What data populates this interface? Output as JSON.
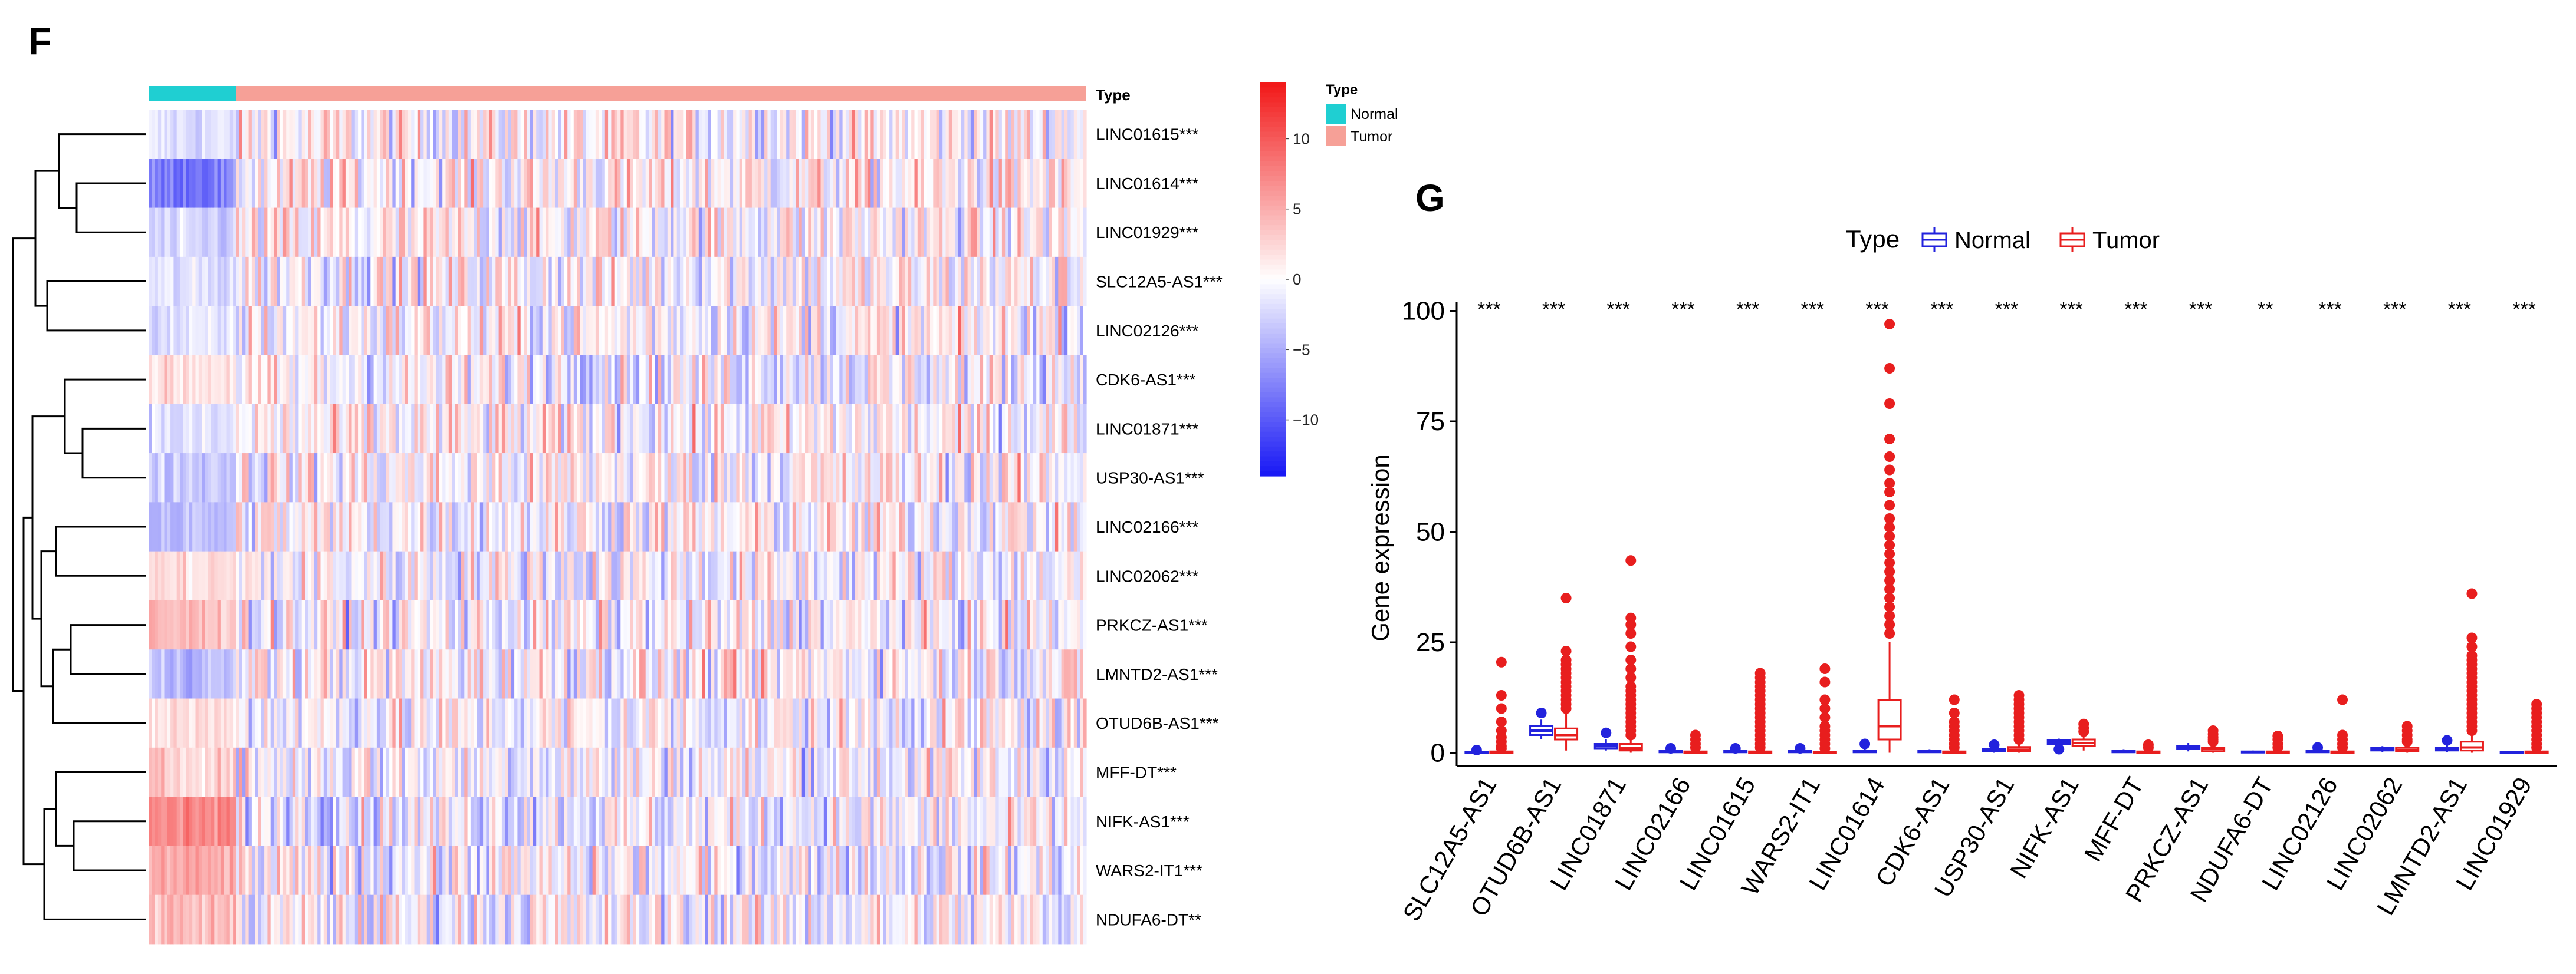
{
  "chart_data": [
    {
      "type": "heatmap",
      "panel_label": "F",
      "annotation_title": "Type",
      "legend_title": "Type",
      "groups": [
        {
          "name": "Normal",
          "color": "#1FCFD2",
          "fraction": 0.093
        },
        {
          "name": "Tumor",
          "color": "#F6A097",
          "fraction": 0.907
        }
      ],
      "rows": [
        {
          "label": "LINC01615***",
          "normal_mean": -2,
          "tumor_mean": 0.5
        },
        {
          "label": "LINC01614***",
          "normal_mean": -8,
          "tumor_mean": 0.8
        },
        {
          "label": "LINC01929***",
          "normal_mean": -3,
          "tumor_mean": 0.4
        },
        {
          "label": "SLC12A5-AS1***",
          "normal_mean": -2,
          "tumor_mean": 0.3
        },
        {
          "label": "LINC02126***",
          "normal_mean": -2,
          "tumor_mean": 0.3
        },
        {
          "label": "CDK6-AS1***",
          "normal_mean": 2,
          "tumor_mean": -0.2
        },
        {
          "label": "LINC01871***",
          "normal_mean": -2,
          "tumor_mean": 0.3
        },
        {
          "label": "USP30-AS1***",
          "normal_mean": -3,
          "tumor_mean": 0.3
        },
        {
          "label": "LINC02166***",
          "normal_mean": -4,
          "tumor_mean": 0.3
        },
        {
          "label": "LINC02062***",
          "normal_mean": 2,
          "tumor_mean": -0.2
        },
        {
          "label": "PRKCZ-AS1***",
          "normal_mean": 4,
          "tumor_mean": -0.3
        },
        {
          "label": "LMNTD2-AS1***",
          "normal_mean": -4,
          "tumor_mean": 0.4
        },
        {
          "label": "OTUD6B-AS1***",
          "normal_mean": 2,
          "tumor_mean": -0.2
        },
        {
          "label": "MFF-DT***",
          "normal_mean": 3,
          "tumor_mean": -0.2
        },
        {
          "label": "NIFK-AS1***",
          "normal_mean": 7,
          "tumor_mean": -0.6
        },
        {
          "label": "WARS2-IT1***",
          "normal_mean": 5,
          "tumor_mean": -0.5
        },
        {
          "label": "NDUFA6-DT**",
          "normal_mean": 4,
          "tumor_mean": -0.3
        }
      ],
      "colorbar": {
        "ticks": [
          10,
          5,
          0,
          -5,
          -10
        ],
        "range": [
          -14,
          14
        ],
        "low": "#1A1AF5",
        "mid": "#FFFFFF",
        "high": "#F21A1A"
      },
      "dendrogram": true
    },
    {
      "type": "box",
      "panel_label": "G",
      "legend_title": "Type",
      "series": [
        {
          "name": "Normal",
          "color": "#2222DD"
        },
        {
          "name": "Tumor",
          "color": "#E81E1E"
        }
      ],
      "ylabel": "Gene expression",
      "yticks": [
        0,
        25,
        50,
        75,
        100
      ],
      "ylim": [
        -3,
        101
      ],
      "categories": [
        "SLC12A5-AS1",
        "OTUD6B-AS1",
        "LINC01871",
        "LINC02166",
        "LINC01615",
        "WARS2-IT1",
        "LINC01614",
        "CDK6-AS1",
        "USP30-AS1",
        "NIFK-AS1",
        "MFF-DT",
        "PRKCZ-AS1",
        "NDUFA6-DT",
        "LINC02126",
        "LINC02062",
        "LMNTD2-AS1",
        "LINC01929"
      ],
      "significance": [
        "***",
        "***",
        "***",
        "***",
        "***",
        "***",
        "***",
        "***",
        "***",
        "***",
        "***",
        "***",
        "**",
        "***",
        "***",
        "***",
        "***"
      ],
      "normal": [
        {
          "q1": 0.0,
          "med": 0.1,
          "q3": 0.2,
          "lo": 0,
          "hi": 0.4,
          "out": [
            0.6
          ]
        },
        {
          "q1": 4.0,
          "med": 5.0,
          "q3": 6.0,
          "lo": 3.0,
          "hi": 7.5,
          "out": [
            9.0
          ]
        },
        {
          "q1": 1.0,
          "med": 1.5,
          "q3": 2.0,
          "lo": 0.5,
          "hi": 3.0,
          "out": [
            4.5
          ]
        },
        {
          "q1": 0.1,
          "med": 0.3,
          "q3": 0.5,
          "lo": 0,
          "hi": 0.8,
          "out": [
            1.0
          ]
        },
        {
          "q1": 0.1,
          "med": 0.3,
          "q3": 0.5,
          "lo": 0,
          "hi": 0.8,
          "out": [
            1.0
          ]
        },
        {
          "q1": 0.1,
          "med": 0.2,
          "q3": 0.4,
          "lo": 0,
          "hi": 0.7,
          "out": [
            1.0
          ]
        },
        {
          "q1": 0.1,
          "med": 0.3,
          "q3": 0.5,
          "lo": 0,
          "hi": 1.0,
          "out": [
            2.0
          ]
        },
        {
          "q1": 0.1,
          "med": 0.3,
          "q3": 0.5,
          "lo": 0,
          "hi": 0.8,
          "out": []
        },
        {
          "q1": 0.3,
          "med": 0.6,
          "q3": 0.9,
          "lo": 0,
          "hi": 1.3,
          "out": [
            1.8
          ]
        },
        {
          "q1": 2.0,
          "med": 2.4,
          "q3": 2.8,
          "lo": 1.5,
          "hi": 3.2,
          "out": [
            0.8
          ]
        },
        {
          "q1": 0.1,
          "med": 0.3,
          "q3": 0.5,
          "lo": 0,
          "hi": 0.8,
          "out": []
        },
        {
          "q1": 0.8,
          "med": 1.2,
          "q3": 1.6,
          "lo": 0.3,
          "hi": 2.2,
          "out": []
        },
        {
          "q1": 0.1,
          "med": 0.2,
          "q3": 0.3,
          "lo": 0,
          "hi": 0.5,
          "out": []
        },
        {
          "q1": 0.1,
          "med": 0.3,
          "q3": 0.5,
          "lo": 0,
          "hi": 0.8,
          "out": [
            1.2
          ]
        },
        {
          "q1": 0.5,
          "med": 0.8,
          "q3": 1.1,
          "lo": 0.2,
          "hi": 1.5,
          "out": []
        },
        {
          "q1": 0.5,
          "med": 0.8,
          "q3": 1.2,
          "lo": 0.2,
          "hi": 1.8,
          "out": [
            2.8
          ]
        },
        {
          "q1": 0.0,
          "med": 0.1,
          "q3": 0.2,
          "lo": 0,
          "hi": 0.4,
          "out": []
        }
      ],
      "tumor": [
        {
          "q1": 0.0,
          "med": 0.1,
          "q3": 0.3,
          "lo": 0,
          "hi": 0.7,
          "out": [
            1.0,
            1.5,
            2.5,
            3.5,
            5,
            7,
            10,
            13,
            20.5
          ]
        },
        {
          "q1": 3.0,
          "med": 4.0,
          "q3": 5.5,
          "lo": 0.5,
          "hi": 9.0,
          "out": [
            10,
            11,
            12,
            13,
            14,
            15,
            16,
            17,
            18,
            19,
            20,
            21,
            23,
            35
          ]
        },
        {
          "q1": 0.5,
          "med": 1.0,
          "q3": 2.0,
          "lo": 0,
          "hi": 3.5,
          "out": [
            4,
            5,
            6,
            7,
            8,
            9,
            10,
            11,
            12,
            13,
            14,
            15,
            17,
            19,
            21,
            24,
            27,
            29,
            30.5,
            43.5
          ]
        },
        {
          "q1": 0.0,
          "med": 0.1,
          "q3": 0.3,
          "lo": 0,
          "hi": 0.8,
          "out": [
            1.2,
            2,
            3,
            4
          ]
        },
        {
          "q1": 0.0,
          "med": 0.1,
          "q3": 0.3,
          "lo": 0,
          "hi": 0.8,
          "out": [
            1.2,
            2,
            3,
            4,
            5,
            6,
            7,
            8,
            9,
            10,
            11,
            12,
            13,
            14,
            15,
            16,
            17,
            18
          ]
        },
        {
          "q1": 0.0,
          "med": 0.1,
          "q3": 0.2,
          "lo": 0,
          "hi": 0.6,
          "out": [
            1,
            2,
            3,
            4,
            5,
            6,
            8,
            10,
            12,
            16,
            19
          ]
        },
        {
          "q1": 3.0,
          "med": 6.0,
          "q3": 12.0,
          "lo": 0,
          "hi": 25.0,
          "out": [
            27,
            29,
            31,
            33,
            35,
            37,
            39,
            41,
            43,
            45,
            47,
            49,
            51,
            53,
            56,
            59,
            61,
            64,
            67,
            71,
            79,
            87,
            97
          ]
        },
        {
          "q1": 0.0,
          "med": 0.1,
          "q3": 0.3,
          "lo": 0,
          "hi": 0.8,
          "out": [
            1.2,
            2,
            3,
            4,
            5,
            6,
            7,
            9,
            12
          ]
        },
        {
          "q1": 0.3,
          "med": 0.7,
          "q3": 1.3,
          "lo": 0,
          "hi": 2.5,
          "out": [
            3,
            4,
            5,
            6,
            7,
            8,
            9,
            10,
            11,
            12,
            13
          ]
        },
        {
          "q1": 1.5,
          "med": 2.2,
          "q3": 3.0,
          "lo": 0.5,
          "hi": 4.0,
          "out": [
            4.8,
            5.6,
            6.5
          ]
        },
        {
          "q1": 0.0,
          "med": 0.1,
          "q3": 0.3,
          "lo": 0,
          "hi": 0.8,
          "out": [
            1.2,
            1.8
          ]
        },
        {
          "q1": 0.3,
          "med": 0.8,
          "q3": 1.2,
          "lo": 0,
          "hi": 2.0,
          "out": [
            2.5,
            3.0,
            3.5,
            4.2,
            5.0
          ]
        },
        {
          "q1": 0.0,
          "med": 0.1,
          "q3": 0.3,
          "lo": 0,
          "hi": 0.8,
          "out": [
            1.2,
            2,
            3,
            3.8
          ]
        },
        {
          "q1": 0.0,
          "med": 0.1,
          "q3": 0.3,
          "lo": 0,
          "hi": 0.8,
          "out": [
            1.2,
            2,
            3,
            4,
            12
          ]
        },
        {
          "q1": 0.3,
          "med": 0.7,
          "q3": 1.2,
          "lo": 0,
          "hi": 2.0,
          "out": [
            2.5,
            3,
            4,
            5,
            6
          ]
        },
        {
          "q1": 0.5,
          "med": 1.2,
          "q3": 2.5,
          "lo": 0,
          "hi": 4.5,
          "out": [
            5,
            6,
            7,
            8,
            9,
            10,
            11,
            12,
            13,
            14,
            15,
            16,
            17,
            18,
            19,
            20,
            21,
            22,
            24,
            26,
            36
          ]
        },
        {
          "q1": 0.0,
          "med": 0.1,
          "q3": 0.3,
          "lo": 0,
          "hi": 0.8,
          "out": [
            1.2,
            2,
            3,
            4,
            5,
            6,
            7,
            8,
            9,
            10,
            11
          ]
        }
      ]
    }
  ]
}
